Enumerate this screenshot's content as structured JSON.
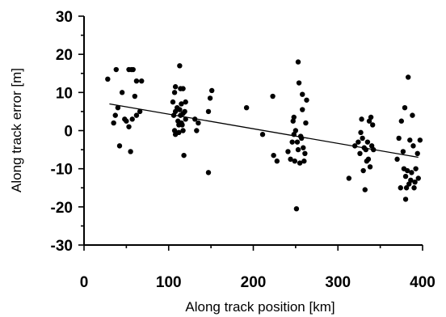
{
  "chart_data": {
    "type": "scatter",
    "title": "",
    "xlabel": "Along track position [km]",
    "ylabel": "Along track error [m]",
    "xlim": [
      0,
      400
    ],
    "ylim": [
      -30,
      30
    ],
    "x_ticks": [
      0,
      100,
      200,
      300,
      400
    ],
    "y_ticks": [
      -30,
      -20,
      -10,
      0,
      10,
      20,
      30
    ],
    "grid": false,
    "legend": "none",
    "point_color": "#000000",
    "series": [
      {
        "points": [
          [
            28,
            13.5
          ],
          [
            35,
            2
          ],
          [
            37,
            4
          ],
          [
            38,
            16
          ],
          [
            40,
            6
          ],
          [
            42,
            -4
          ],
          [
            45,
            10
          ],
          [
            48,
            3
          ],
          [
            50,
            2.5
          ],
          [
            53,
            1
          ],
          [
            53,
            16
          ],
          [
            55,
            -5.5
          ],
          [
            56,
            16
          ],
          [
            57,
            3
          ],
          [
            58,
            16
          ],
          [
            60,
            9
          ],
          [
            62,
            13
          ],
          [
            62,
            4
          ],
          [
            66,
            5
          ],
          [
            68,
            13
          ],
          [
            105,
            7.5
          ],
          [
            106,
            4
          ],
          [
            107,
            10
          ],
          [
            107,
            0
          ],
          [
            108,
            5
          ],
          [
            108,
            11.5
          ],
          [
            108,
            -1
          ],
          [
            110,
            6
          ],
          [
            111,
            2.5
          ],
          [
            112,
            1.5
          ],
          [
            112,
            -0.5
          ],
          [
            113,
            5.5
          ],
          [
            113,
            17
          ],
          [
            114,
            11
          ],
          [
            114,
            4
          ],
          [
            115,
            7
          ],
          [
            115,
            2
          ],
          [
            116,
            1.5
          ],
          [
            117,
            4.5
          ],
          [
            117,
            11
          ],
          [
            117,
            0
          ],
          [
            118,
            -6.5
          ],
          [
            119,
            5
          ],
          [
            120,
            3
          ],
          [
            120,
            7.5
          ],
          [
            131,
            3
          ],
          [
            133,
            0
          ],
          [
            135,
            2
          ],
          [
            147,
            5
          ],
          [
            147,
            -11
          ],
          [
            149,
            8.5
          ],
          [
            151,
            10.5
          ],
          [
            192,
            6
          ],
          [
            211,
            -1
          ],
          [
            223,
            9
          ],
          [
            224,
            -6.5
          ],
          [
            228,
            -8
          ],
          [
            241,
            -5.5
          ],
          [
            244,
            -7.5
          ],
          [
            246,
            -3
          ],
          [
            247,
            2.5
          ],
          [
            248,
            -1
          ],
          [
            248,
            3.5
          ],
          [
            249,
            -8
          ],
          [
            250,
            0
          ],
          [
            251,
            -20.5
          ],
          [
            252,
            -3
          ],
          [
            253,
            18
          ],
          [
            253,
            -5
          ],
          [
            254,
            12.5
          ],
          [
            255,
            -8.5
          ],
          [
            256,
            -1.5
          ],
          [
            257,
            -2
          ],
          [
            258,
            5.5
          ],
          [
            258,
            9.5
          ],
          [
            259,
            -4.5
          ],
          [
            260,
            -8
          ],
          [
            261,
            -6
          ],
          [
            262,
            2
          ],
          [
            263,
            8
          ],
          [
            313,
            -12.5
          ],
          [
            320,
            -4
          ],
          [
            324,
            -3
          ],
          [
            326,
            -6
          ],
          [
            327,
            -0.5
          ],
          [
            328,
            3
          ],
          [
            329,
            -2
          ],
          [
            330,
            -10.5
          ],
          [
            331,
            -4.5
          ],
          [
            332,
            -15.5
          ],
          [
            333,
            -5
          ],
          [
            334,
            -8
          ],
          [
            335,
            -3
          ],
          [
            336,
            -7.5
          ],
          [
            337,
            2.5
          ],
          [
            338,
            -9.5
          ],
          [
            339,
            3.5
          ],
          [
            340,
            -4
          ],
          [
            341,
            1.5
          ],
          [
            342,
            -5
          ],
          [
            370,
            -7.5
          ],
          [
            372,
            -2
          ],
          [
            374,
            -15
          ],
          [
            375,
            2.5
          ],
          [
            377,
            -5.5
          ],
          [
            378,
            -10
          ],
          [
            379,
            6
          ],
          [
            380,
            -18
          ],
          [
            380,
            -12
          ],
          [
            381,
            -15
          ],
          [
            382,
            -10.5
          ],
          [
            383,
            14
          ],
          [
            384,
            -14
          ],
          [
            385,
            -2.5
          ],
          [
            386,
            -13
          ],
          [
            387,
            -11
          ],
          [
            388,
            4
          ],
          [
            389,
            -4
          ],
          [
            390,
            -15
          ],
          [
            391,
            -13.5
          ],
          [
            392,
            -10
          ],
          [
            394,
            -6
          ],
          [
            395,
            -12.5
          ],
          [
            397,
            -2.5
          ]
        ]
      }
    ],
    "trendline": {
      "x": [
        30,
        395
      ],
      "y": [
        7,
        -7
      ]
    }
  }
}
